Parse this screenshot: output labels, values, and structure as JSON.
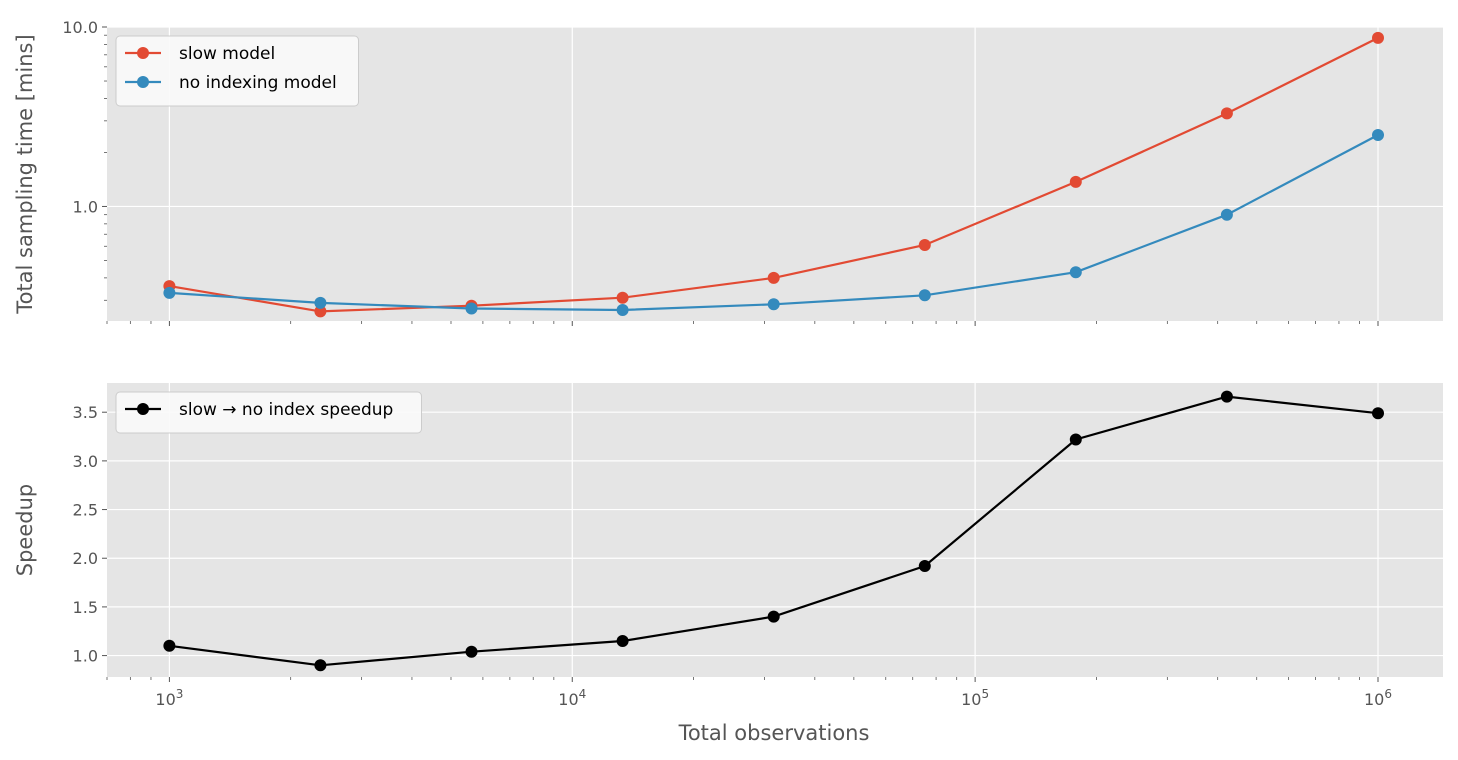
{
  "xlabel": "Total observations",
  "x_tick_labels": [
    {
      "value": 1000,
      "base": "10",
      "exp": "3"
    },
    {
      "value": 10000,
      "base": "10",
      "exp": "4"
    },
    {
      "value": 100000,
      "base": "10",
      "exp": "5"
    },
    {
      "value": 1000000,
      "base": "10",
      "exp": "6"
    }
  ],
  "colors": {
    "slow": "#E24A33",
    "noindex": "#348ABD",
    "speedup": "#000000",
    "panel_bg": "#E5E5E5",
    "grid": "#FFFFFF"
  },
  "chart_data": [
    {
      "type": "line",
      "title": "",
      "xlabel": "",
      "ylabel": "Total sampling time [mins]",
      "xscale": "log",
      "yscale": "log",
      "xlim": [
        700,
        1450000
      ],
      "ylim": [
        0.23,
        10.0
      ],
      "grid": true,
      "legend": "top-left",
      "x": [
        1000,
        2371,
        5623,
        13335,
        31623,
        74989,
        177828,
        421697,
        1000000
      ],
      "y_ticks": [
        1.0,
        10.0
      ],
      "y_tick_labels": [
        "1.0",
        "10.0"
      ],
      "series": [
        {
          "name": "slow model",
          "color": "#E24A33",
          "values": [
            0.36,
            0.26,
            0.28,
            0.31,
            0.4,
            0.61,
            1.37,
            3.3,
            8.7
          ]
        },
        {
          "name": "no indexing model",
          "color": "#348ABD",
          "values": [
            0.33,
            0.29,
            0.27,
            0.265,
            0.285,
            0.32,
            0.43,
            0.9,
            2.5
          ]
        }
      ]
    },
    {
      "type": "line",
      "title": "",
      "xlabel": "Total observations",
      "ylabel": "Speedup",
      "xscale": "log",
      "xlim": [
        700,
        1450000
      ],
      "ylim": [
        0.78,
        3.8
      ],
      "grid": true,
      "legend": "top-left",
      "x": [
        1000,
        2371,
        5623,
        13335,
        31623,
        74989,
        177828,
        421697,
        1000000
      ],
      "y_ticks": [
        1.0,
        1.5,
        2.0,
        2.5,
        3.0,
        3.5
      ],
      "y_tick_labels": [
        "1.0",
        "1.5",
        "2.0",
        "2.5",
        "3.0",
        "3.5"
      ],
      "series": [
        {
          "name": "slow → no index speedup",
          "color": "#000000",
          "values": [
            1.1,
            0.9,
            1.04,
            1.15,
            1.4,
            1.92,
            3.22,
            3.66,
            3.49
          ]
        }
      ]
    }
  ]
}
